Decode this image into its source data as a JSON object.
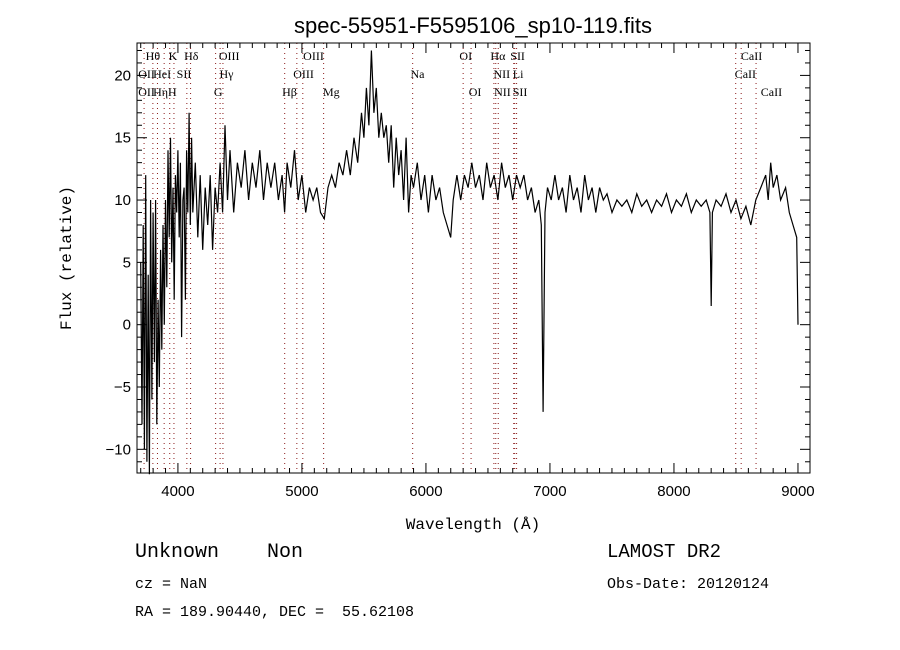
{
  "chart_data": {
    "type": "line",
    "title": "spec-55951-F5595106_sp10-119.fits",
    "xlabel": "Wavelength (Å)",
    "ylabel": "Flux (relative)",
    "xlim": [
      3670,
      9097
    ],
    "ylim": [
      -11.9,
      22.6
    ],
    "xticks": [
      4000,
      5000,
      6000,
      7000,
      8000,
      9000
    ],
    "yticks": [
      -10,
      -5,
      0,
      5,
      10,
      15,
      20
    ],
    "grid": false,
    "series": [
      {
        "name": "spectrum",
        "wavelength": [
          3700,
          3710,
          3720,
          3730,
          3740,
          3750,
          3760,
          3770,
          3780,
          3790,
          3800,
          3810,
          3820,
          3830,
          3840,
          3850,
          3860,
          3870,
          3880,
          3890,
          3900,
          3910,
          3920,
          3930,
          3940,
          3950,
          3960,
          3970,
          3980,
          3990,
          4000,
          4010,
          4020,
          4030,
          4040,
          4050,
          4060,
          4070,
          4080,
          4090,
          4100,
          4110,
          4120,
          4140,
          4160,
          4180,
          4200,
          4220,
          4240,
          4260,
          4280,
          4300,
          4320,
          4340,
          4360,
          4380,
          4400,
          4420,
          4450,
          4480,
          4510,
          4540,
          4570,
          4600,
          4630,
          4660,
          4690,
          4720,
          4750,
          4780,
          4810,
          4840,
          4860,
          4880,
          4910,
          4940,
          4970,
          5000,
          5030,
          5060,
          5090,
          5120,
          5150,
          5180,
          5210,
          5240,
          5270,
          5300,
          5330,
          5360,
          5390,
          5420,
          5450,
          5480,
          5500,
          5520,
          5540,
          5560,
          5580,
          5600,
          5620,
          5640,
          5660,
          5680,
          5700,
          5720,
          5740,
          5760,
          5780,
          5800,
          5820,
          5840,
          5860,
          5880,
          5900,
          5930,
          5960,
          5990,
          6020,
          6050,
          6080,
          6110,
          6140,
          6170,
          6200,
          6220,
          6250,
          6280,
          6310,
          6340,
          6370,
          6400,
          6430,
          6460,
          6490,
          6520,
          6550,
          6580,
          6610,
          6640,
          6670,
          6700,
          6730,
          6760,
          6790,
          6820,
          6850,
          6880,
          6910,
          6930,
          6945,
          6960,
          6980,
          7010,
          7040,
          7070,
          7100,
          7130,
          7160,
          7190,
          7220,
          7250,
          7280,
          7310,
          7340,
          7370,
          7400,
          7430,
          7460,
          7500,
          7540,
          7580,
          7620,
          7660,
          7700,
          7740,
          7780,
          7820,
          7860,
          7900,
          7940,
          7980,
          8020,
          8060,
          8100,
          8140,
          8180,
          8220,
          8260,
          8290,
          8300,
          8310,
          8340,
          8380,
          8420,
          8460,
          8500,
          8540,
          8580,
          8620,
          8660,
          8700,
          8740,
          8760,
          8780,
          8800,
          8830,
          8860,
          8900,
          8930,
          8960,
          8990,
          9000
        ],
        "flux": [
          5,
          -8,
          8,
          -10,
          12,
          -11,
          4,
          -12,
          10,
          -6,
          9,
          -3,
          10,
          -8,
          2,
          -5,
          6,
          -2,
          8,
          0,
          10,
          3,
          14,
          7,
          15,
          5,
          11,
          2,
          12,
          9,
          14,
          7,
          13,
          -1,
          10,
          11,
          2,
          14,
          9,
          17,
          8,
          15,
          9,
          13,
          7,
          12,
          6,
          11,
          8,
          12,
          6,
          11,
          9,
          13,
          9,
          16,
          10,
          14,
          9,
          13,
          11,
          14,
          10,
          13,
          11,
          14,
          10,
          13,
          11,
          13,
          10,
          12,
          9,
          13,
          11,
          14,
          10,
          12,
          9,
          11,
          10,
          11,
          9,
          8.5,
          11,
          12,
          11,
          13,
          12,
          14,
          12,
          15,
          13,
          17,
          15,
          19,
          16,
          22,
          17,
          19,
          15,
          17,
          15,
          16,
          13,
          16,
          11,
          15,
          12,
          14,
          10,
          15,
          9,
          12,
          11,
          13,
          10,
          12,
          9,
          12,
          10,
          11,
          9,
          8,
          7,
          10,
          12,
          10,
          12,
          11,
          13,
          11,
          12,
          10,
          13,
          11,
          12,
          10,
          13,
          11,
          12,
          10,
          12,
          11,
          12,
          10,
          11,
          9,
          10,
          8,
          -7,
          9,
          11,
          10,
          12,
          10,
          11,
          9,
          12,
          10,
          11,
          9,
          12,
          10,
          11,
          9,
          11,
          10,
          10.5,
          9,
          10,
          9.5,
          10,
          9,
          10.5,
          9.5,
          10,
          9,
          10,
          9.5,
          10.5,
          9,
          10,
          9.5,
          10.5,
          9,
          10,
          9.5,
          10,
          9,
          1.5,
          9,
          10,
          9.5,
          10.5,
          9,
          10,
          8.5,
          9.5,
          8,
          10,
          11,
          12,
          10,
          13,
          11,
          12,
          10,
          11,
          9,
          8,
          7,
          0
        ]
      }
    ],
    "line_markers": [
      3727,
      3798,
      3835,
      3889,
      3934,
      3968,
      4072,
      4102,
      4304,
      4340,
      4363,
      4861,
      4959,
      5007,
      5175,
      5893,
      6300,
      6364,
      6548,
      6563,
      6583,
      6708,
      6716,
      6731,
      8498,
      8542,
      8662
    ],
    "line_labels": [
      {
        "text": "Hθ",
        "wl": 3740,
        "row": 0
      },
      {
        "text": "K",
        "wl": 3925,
        "row": 0
      },
      {
        "text": "Hδ",
        "wl": 4050,
        "row": 0
      },
      {
        "text": "OIII",
        "wl": 4330,
        "row": 0
      },
      {
        "text": "OIII",
        "wl": 5010,
        "row": 0
      },
      {
        "text": "OI",
        "wl": 6270,
        "row": 0
      },
      {
        "text": "Hα",
        "wl": 6520,
        "row": 0
      },
      {
        "text": "SII",
        "wl": 6680,
        "row": 0
      },
      {
        "text": "CaII",
        "wl": 8540,
        "row": 0
      },
      {
        "text": "OII",
        "wl": 3680,
        "row": 1
      },
      {
        "text": "HeI",
        "wl": 3800,
        "row": 1
      },
      {
        "text": "SII",
        "wl": 3990,
        "row": 1
      },
      {
        "text": "Hγ",
        "wl": 4335,
        "row": 1
      },
      {
        "text": "OIII",
        "wl": 4930,
        "row": 1
      },
      {
        "text": "Na",
        "wl": 5875,
        "row": 1
      },
      {
        "text": "NII",
        "wl": 6545,
        "row": 1
      },
      {
        "text": "Li",
        "wl": 6700,
        "row": 1
      },
      {
        "text": "CaII",
        "wl": 8490,
        "row": 1
      },
      {
        "text": "OII",
        "wl": 3680,
        "row": 2
      },
      {
        "text": "Hη",
        "wl": 3800,
        "row": 2
      },
      {
        "text": "H",
        "wl": 3920,
        "row": 2
      },
      {
        "text": "G",
        "wl": 4290,
        "row": 2
      },
      {
        "text": "Hβ",
        "wl": 4840,
        "row": 2
      },
      {
        "text": "Mg",
        "wl": 5170,
        "row": 2
      },
      {
        "text": "OI",
        "wl": 6345,
        "row": 2
      },
      {
        "text": "NII",
        "wl": 6550,
        "row": 2
      },
      {
        "text": "SII",
        "wl": 6700,
        "row": 2
      },
      {
        "text": "CaII",
        "wl": 8700,
        "row": 2
      }
    ]
  },
  "info": {
    "class": "Unknown    Non",
    "survey": "LAMOST DR2",
    "cz": "cz = NaN",
    "obs_date": "Obs-Date: 20120124",
    "coords": "RA = 189.90440, DEC =  55.62108"
  },
  "colors": {
    "line": "#000000",
    "marker": "#8b1a1a"
  }
}
